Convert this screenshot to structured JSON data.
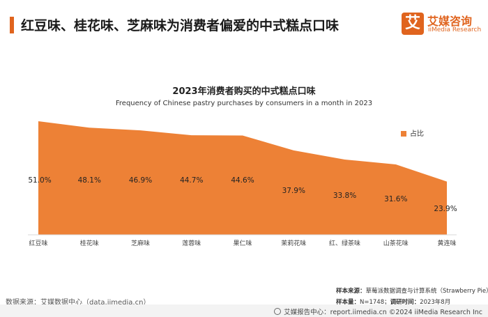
{
  "header": {
    "title": "红豆味、桂花味、芝麻味为消费者偏爱的中式糕点口味",
    "logo_mark": "艾",
    "logo_cn": "艾媒咨询",
    "logo_en": "iiMedia Research"
  },
  "colors": {
    "accent": "#e0641e",
    "area": "#ed8136"
  },
  "chart_data": {
    "type": "area",
    "title": "2023年消费者购买的中式糕点口味",
    "subtitle": "Frequency of Chinese pastry purchases by consumers in a month in 2023",
    "categories": [
      "红豆味",
      "桂花味",
      "芝麻味",
      "莲蓉味",
      "果仁味",
      "茉莉花味",
      "红、绿茶味",
      "山茶花味",
      "黄连味"
    ],
    "series": [
      {
        "name": "占比",
        "values": [
          51.0,
          48.1,
          46.9,
          44.7,
          44.6,
          37.9,
          33.8,
          31.6,
          23.9
        ],
        "labels": [
          "51.0%",
          "48.1%",
          "46.9%",
          "44.7%",
          "44.6%",
          "37.9%",
          "33.8%",
          "31.6%",
          "23.9%"
        ]
      }
    ],
    "ylim": [
      0,
      55
    ],
    "grid": false,
    "legend_position": "top-right"
  },
  "footer": {
    "source": "数据来源：艾媒数据中心（data.iimedia.cn）",
    "sample_source_label": "样本来源：",
    "sample_source": "草莓派数据调查与计算系统（Strawberry Pie）",
    "sample_size_label": "样本量：",
    "sample_size": "N=1748；",
    "survey_time_label": "调研时间：",
    "survey_time": "2023年8月",
    "copyright": "艾媒报告中心：report.iimedia.cn  ©2024  iiMedia Research  Inc"
  }
}
